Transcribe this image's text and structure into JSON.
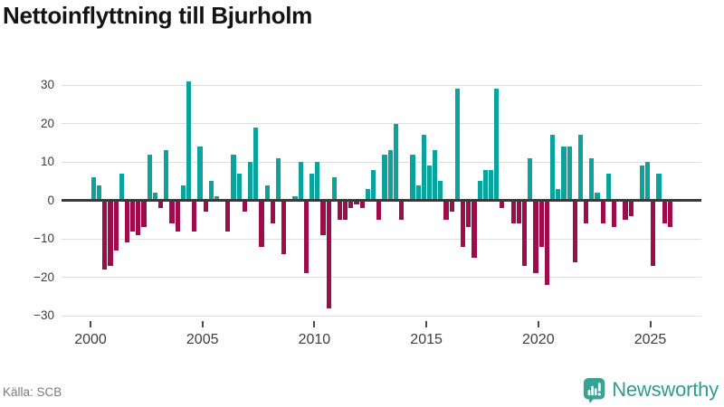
{
  "title": "Nettoinflyttning till Bjurholm",
  "source": "Källa: SCB",
  "branding": {
    "name": "Newsworthy",
    "logo_color": "#3aa295",
    "text_color": "#2f9c91"
  },
  "chart_data": {
    "type": "bar",
    "title": "Nettoinflyttning till Bjurholm",
    "x_range": {
      "start": "2000Q1",
      "end": "2025Q4",
      "frequency": "quarterly"
    },
    "x_tick_labels": [
      "2000",
      "2005",
      "2010",
      "2015",
      "2020",
      "2025"
    ],
    "y_ticks": [
      30,
      20,
      10,
      0,
      -10,
      -20,
      -30
    ],
    "y_tick_labels": [
      "30",
      "20",
      "10",
      "0",
      "−10",
      "−20",
      "−30"
    ],
    "ylim": [
      -30,
      31
    ],
    "grid": "horizontal",
    "legend": "none",
    "colors": {
      "positive": "#0aa39d",
      "negative": "#9e0c4b"
    },
    "series": [
      {
        "name": "Nettoinflyttning",
        "values": [
          6,
          4,
          -18,
          -17,
          -13,
          7,
          -11,
          -8,
          -9,
          -7,
          12,
          2,
          -2,
          13,
          -6,
          -8,
          4,
          31,
          -8,
          14,
          -3,
          5,
          1,
          0,
          -8,
          12,
          7,
          -3,
          10,
          19,
          -12,
          4,
          -6,
          11,
          -14,
          0,
          1,
          10,
          -19,
          7,
          10,
          -9,
          -28,
          6,
          -5,
          -5,
          -2,
          -1,
          -2,
          3,
          8,
          -5,
          12,
          13,
          20,
          -5,
          0,
          12,
          4,
          17,
          9,
          13,
          5,
          -5,
          -3,
          29,
          -12,
          -7,
          -15,
          5,
          8,
          8,
          29,
          -2,
          0,
          -6,
          -6,
          -17,
          11,
          -19,
          -12,
          -22,
          17,
          3,
          14,
          14,
          -16,
          17,
          -6,
          11,
          2,
          -6,
          7,
          -7,
          0,
          -5,
          -4,
          0,
          9,
          10,
          -17,
          7,
          -6,
          -7
        ]
      }
    ]
  }
}
